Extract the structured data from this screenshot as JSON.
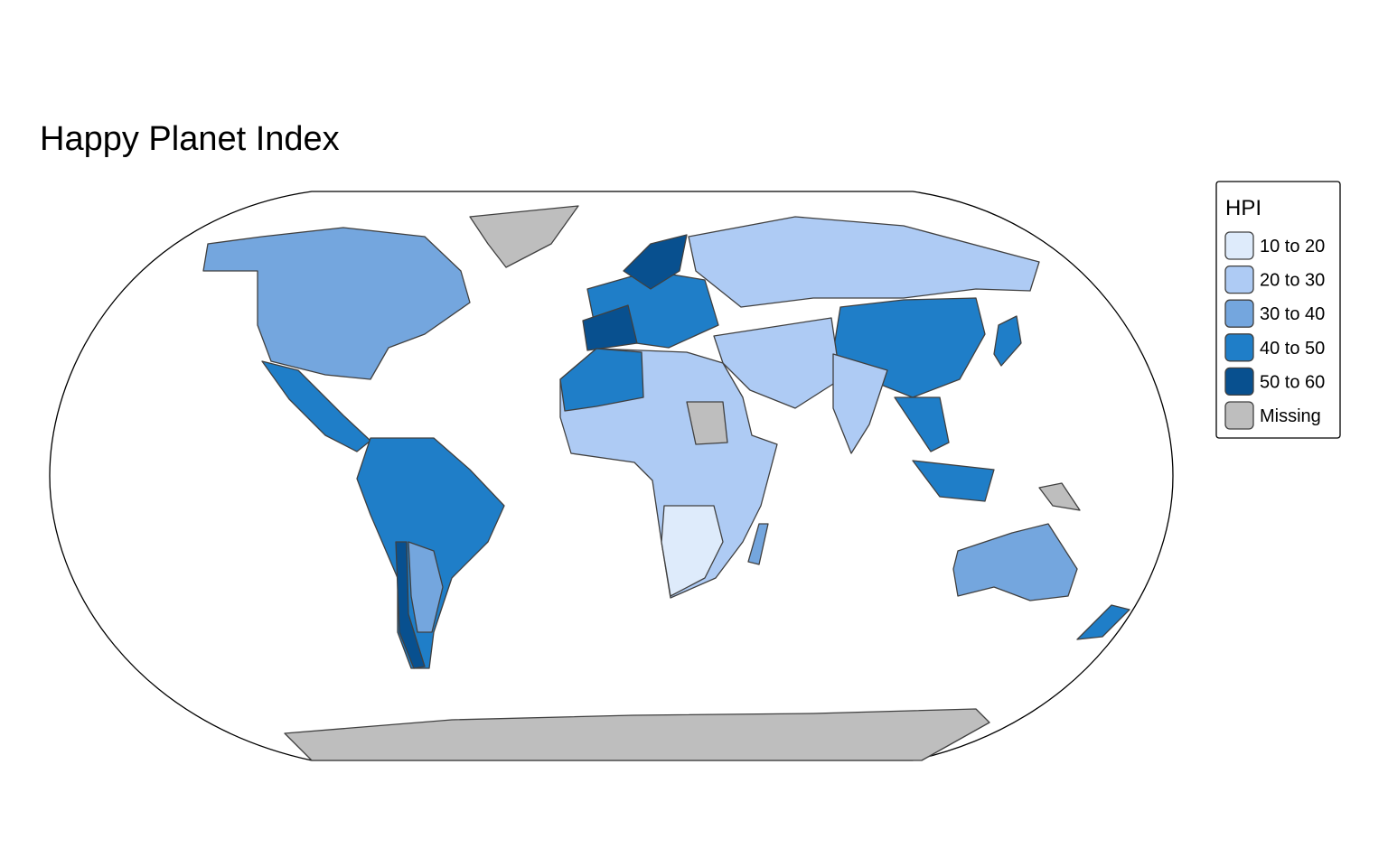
{
  "title": "Happy Planet Index",
  "legend": {
    "title": "HPI",
    "items": [
      {
        "label": "10 to 20",
        "color": "#deebfb"
      },
      {
        "label": "20 to 30",
        "color": "#aecbf4"
      },
      {
        "label": "30 to 40",
        "color": "#74a6de"
      },
      {
        "label": "40 to 50",
        "color": "#1f7ec8"
      },
      {
        "label": "50 to 60",
        "color": "#08508f"
      },
      {
        "label": "Missing",
        "color": "#bebebe"
      }
    ]
  }
}
